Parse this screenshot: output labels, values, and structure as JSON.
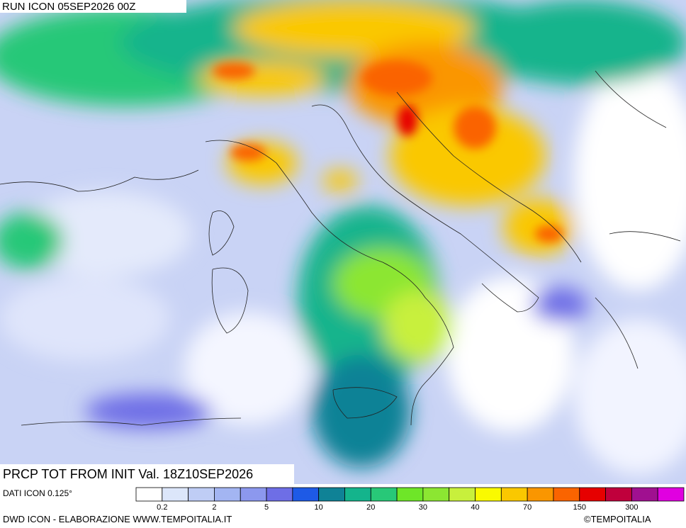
{
  "header": {
    "run": "RUN ICON 05SEP2026 00Z",
    "title": "PRCP TOT FROM INIT Val. 18Z10SEP2026"
  },
  "footer": {
    "model": "DATI ICON 0.125°",
    "credit": "DWD ICON - ELABORAZIONE WWW.TEMPOITALIA.IT",
    "copyright": "©TEMPOITALIA"
  },
  "legend": {
    "colors": [
      "#ffffff",
      "#dce6fa",
      "#bfcdf5",
      "#a3b5f2",
      "#8c98ee",
      "#6e6ee6",
      "#1e5ae6",
      "#0f8296",
      "#14b48c",
      "#28c878",
      "#6ee628",
      "#8ce632",
      "#c8f03c",
      "#fafa00",
      "#fac800",
      "#fa9600",
      "#fa6400",
      "#e60000",
      "#c0003c",
      "#a01090",
      "#e000e0"
    ],
    "labels": [
      0.2,
      2,
      5,
      10,
      20,
      30,
      40,
      70,
      150,
      300
    ]
  }
}
